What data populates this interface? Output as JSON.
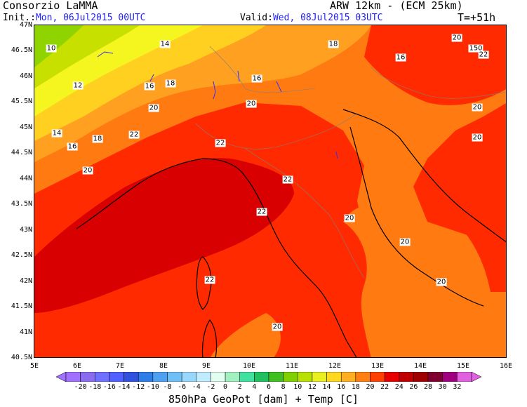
{
  "header": {
    "title": "Consorzio LaMMA",
    "model": "ARW 12km - (ECM 25km)",
    "init_label": "Init.:",
    "init_value": "Mon, 06Jul2015 00UTC",
    "valid_label": "Valid:",
    "valid_value": "Wed, 08Jul2015 03UTC",
    "lead_time": "T=+51h"
  },
  "axes": {
    "latitudes": [
      "47N",
      "46.5N",
      "46N",
      "45.5N",
      "45N",
      "44.5N",
      "44N",
      "43.5N",
      "43N",
      "42.5N",
      "42N",
      "41.5N",
      "41N",
      "40.5N"
    ],
    "longitudes": [
      "5E",
      "6E",
      "7E",
      "8E",
      "9E",
      "10E",
      "11E",
      "12E",
      "13E",
      "14E",
      "15E",
      "16E"
    ]
  },
  "map": {
    "contour_labels": [
      "10",
      "14",
      "12",
      "16",
      "18",
      "16",
      "18",
      "20",
      "20",
      "14",
      "18",
      "16",
      "22",
      "20",
      "22",
      "22",
      "22",
      "20",
      "20",
      "22",
      "20",
      "18",
      "16",
      "20",
      "150",
      "22",
      "20",
      "20",
      "20",
      "20"
    ],
    "field_colors": {
      "t10": "#8fd400",
      "t12": "#c8e000",
      "t14": "#f5f520",
      "t16": "#ffd020",
      "t18": "#ffa020",
      "t20": "#ff7a10",
      "t22": "#ff2a00",
      "t24": "#d80000"
    }
  },
  "colorbar": {
    "ticks": [
      "-20",
      "-18",
      "-16",
      "-14",
      "-12",
      "-10",
      "-8",
      "-6",
      "-4",
      "-2",
      "0",
      "2",
      "4",
      "6",
      "8",
      "10",
      "12",
      "14",
      "16",
      "18",
      "20",
      "22",
      "24",
      "26",
      "28",
      "30",
      "32"
    ],
    "colors": [
      "#a070ff",
      "#8a6cf0",
      "#7070ff",
      "#5060ff",
      "#3050e0",
      "#2d7de8",
      "#4ea0f0",
      "#70c0f8",
      "#98d8fc",
      "#c0ecff",
      "#e0fff0",
      "#a0f0c0",
      "#40e0a0",
      "#20c060",
      "#40c020",
      "#80d000",
      "#b8e000",
      "#e8f020",
      "#ffd820",
      "#ffb020",
      "#ff8010",
      "#ff4000",
      "#e80000",
      "#c00000",
      "#a00000",
      "#800030",
      "#a00080",
      "#e060e0"
    ],
    "title": "850hPa GeoPot [dam] + Temp [C]"
  }
}
